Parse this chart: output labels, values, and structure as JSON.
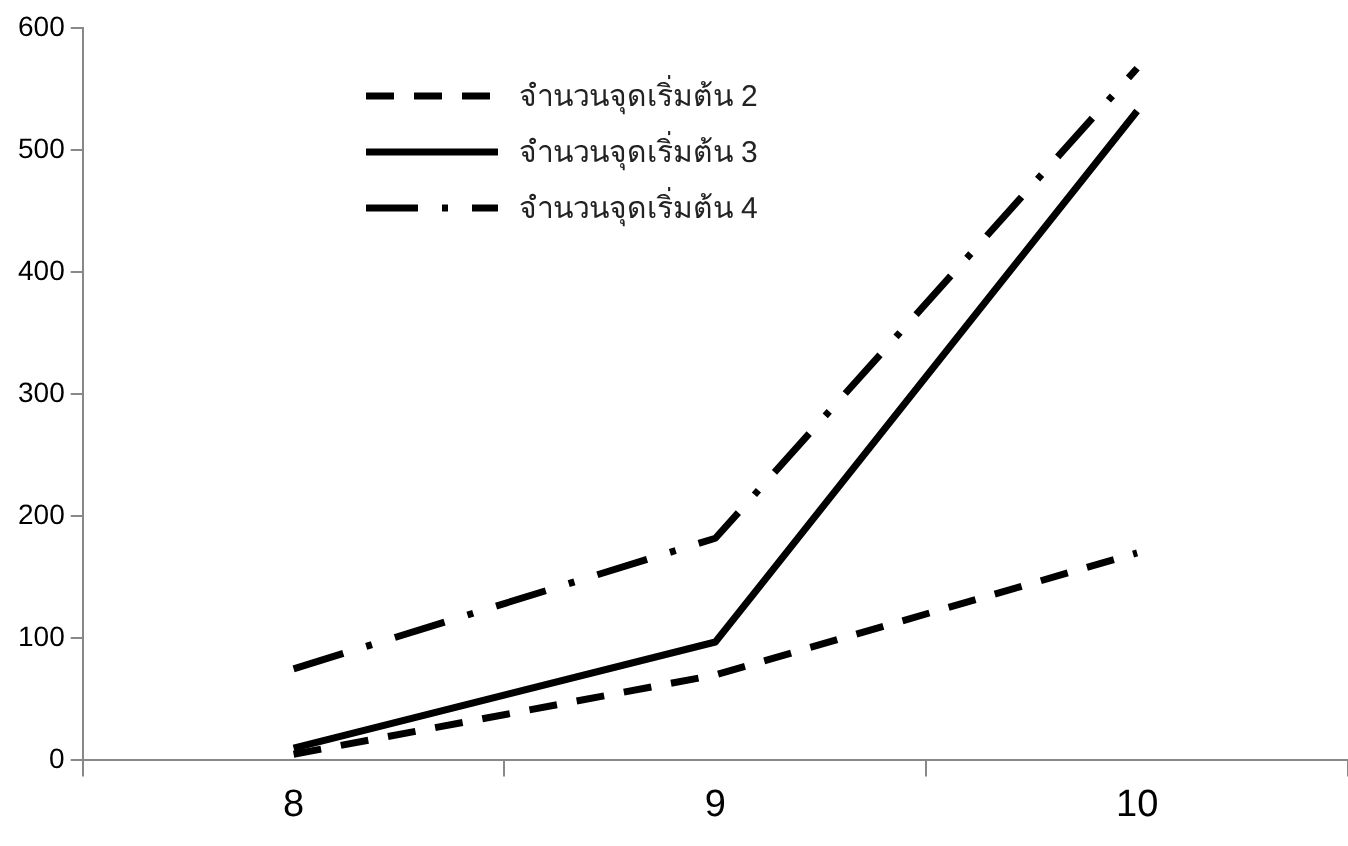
{
  "chart_data": {
    "type": "line",
    "categories": [
      "8",
      "9",
      "10"
    ],
    "series": [
      {
        "name": "จำนวนจุดเริ่มต้น 2",
        "color": "#000000",
        "line_style": "dashed",
        "values": [
          5,
          70,
          170
        ]
      },
      {
        "name": "จำนวนจุดเริ่มต้น 3",
        "color": "#000000",
        "line_style": "solid",
        "values": [
          10,
          97,
          532
        ]
      },
      {
        "name": "จำนวนจุดเริ่มต้น 4",
        "color": "#000000",
        "line_style": "dashdot",
        "values": [
          75,
          182,
          567
        ]
      }
    ],
    "ylim": [
      0,
      600
    ],
    "yticks": [
      0,
      100,
      200,
      300,
      400,
      500,
      600
    ],
    "grid": false,
    "legend": "top left",
    "marker": "none"
  }
}
